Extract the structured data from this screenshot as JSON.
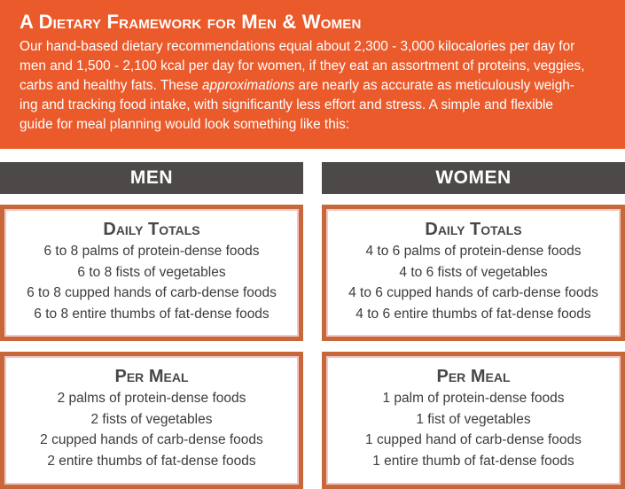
{
  "banner": {
    "title": "A Dietary Framework for Men & Women",
    "lines": [
      "Our hand-based dietary recommendations equal about 2,300 - 3,000 kilocalories per day for",
      "men and 1,500 - 2,100 kcal per day for women, if they eat an assortment of proteins, veggies,",
      "carbs and healthy fats. These ",
      "approximations",
      " are nearly as accurate as meticulously weigh-",
      "ing and tracking food intake, with significantly less effort and stress. A simple and flexible",
      "guide for meal planning would look something like this:"
    ]
  },
  "columns": {
    "men": "MEN",
    "women": "WOMEN"
  },
  "men": {
    "daily": {
      "title": "Daily Totals",
      "items": [
        "6 to 8 palms of protein-dense foods",
        "6 to 8 fists of vegetables",
        "6 to 8 cupped hands of carb-dense foods",
        "6 to 8 entire thumbs of fat-dense foods"
      ]
    },
    "meal": {
      "title": "Per Meal",
      "items": [
        "2 palms of protein-dense foods",
        "2 fists of vegetables",
        "2 cupped hands of carb-dense foods",
        "2 entire thumbs of fat-dense foods"
      ]
    }
  },
  "women": {
    "daily": {
      "title": "Daily Totals",
      "items": [
        "4 to 6 palms of protein-dense foods",
        "4 to 6 fists of vegetables",
        "4 to 6 cupped hands of carb-dense foods",
        "4 to 6 entire thumbs of fat-dense foods"
      ]
    },
    "meal": {
      "title": "Per Meal",
      "items": [
        "1 palm of protein-dense foods",
        "1 fist of vegetables",
        "1 cupped hand of carb-dense foods",
        "1 entire thumb of fat-dense foods"
      ]
    }
  },
  "colors": {
    "banner": "#ea5a2b",
    "header": "#4d4948",
    "card_border": "#c8683a",
    "card_inner_border": "#f2c7c7"
  }
}
